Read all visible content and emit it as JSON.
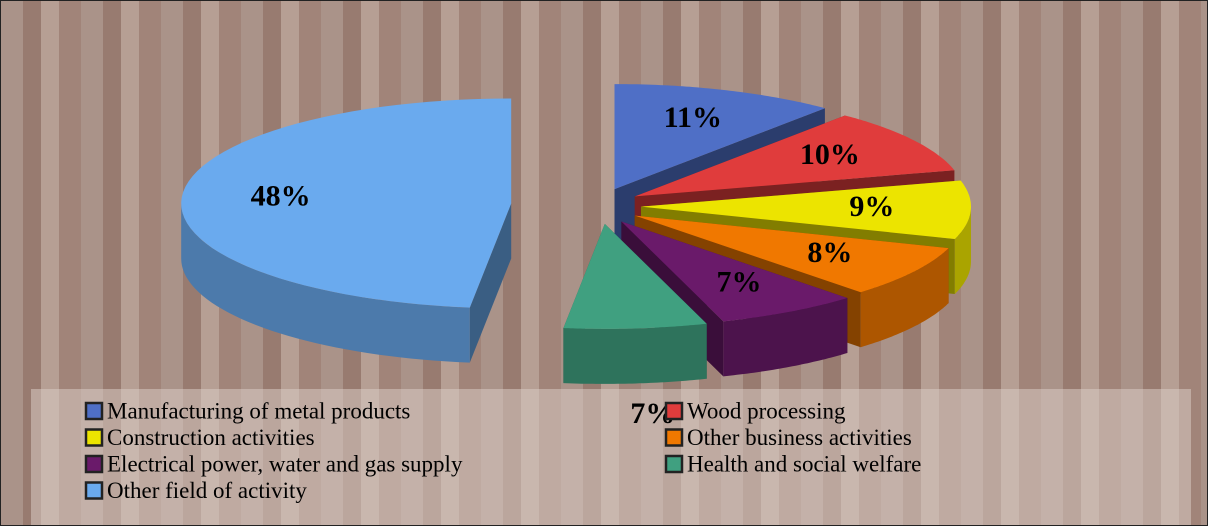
{
  "chart_data": {
    "type": "pie",
    "categories": [
      "Manufacturing of metal products",
      "Wood processing",
      "Construction activities",
      "Other business activities",
      "Electrical power, water and gas supply",
      "Health and social welfare",
      "Other field of activity"
    ],
    "values": [
      11,
      10,
      9,
      8,
      7,
      7,
      48
    ],
    "value_labels": [
      "11%",
      "10%",
      "9%",
      "8%",
      "7%",
      "7%",
      "48%"
    ],
    "colors": [
      "#4f6fc6",
      "#e03c3c",
      "#ece400",
      "#f07800",
      "#6a1a6a",
      "#40a080",
      "#6aaaee"
    ],
    "legend": "bottom"
  }
}
